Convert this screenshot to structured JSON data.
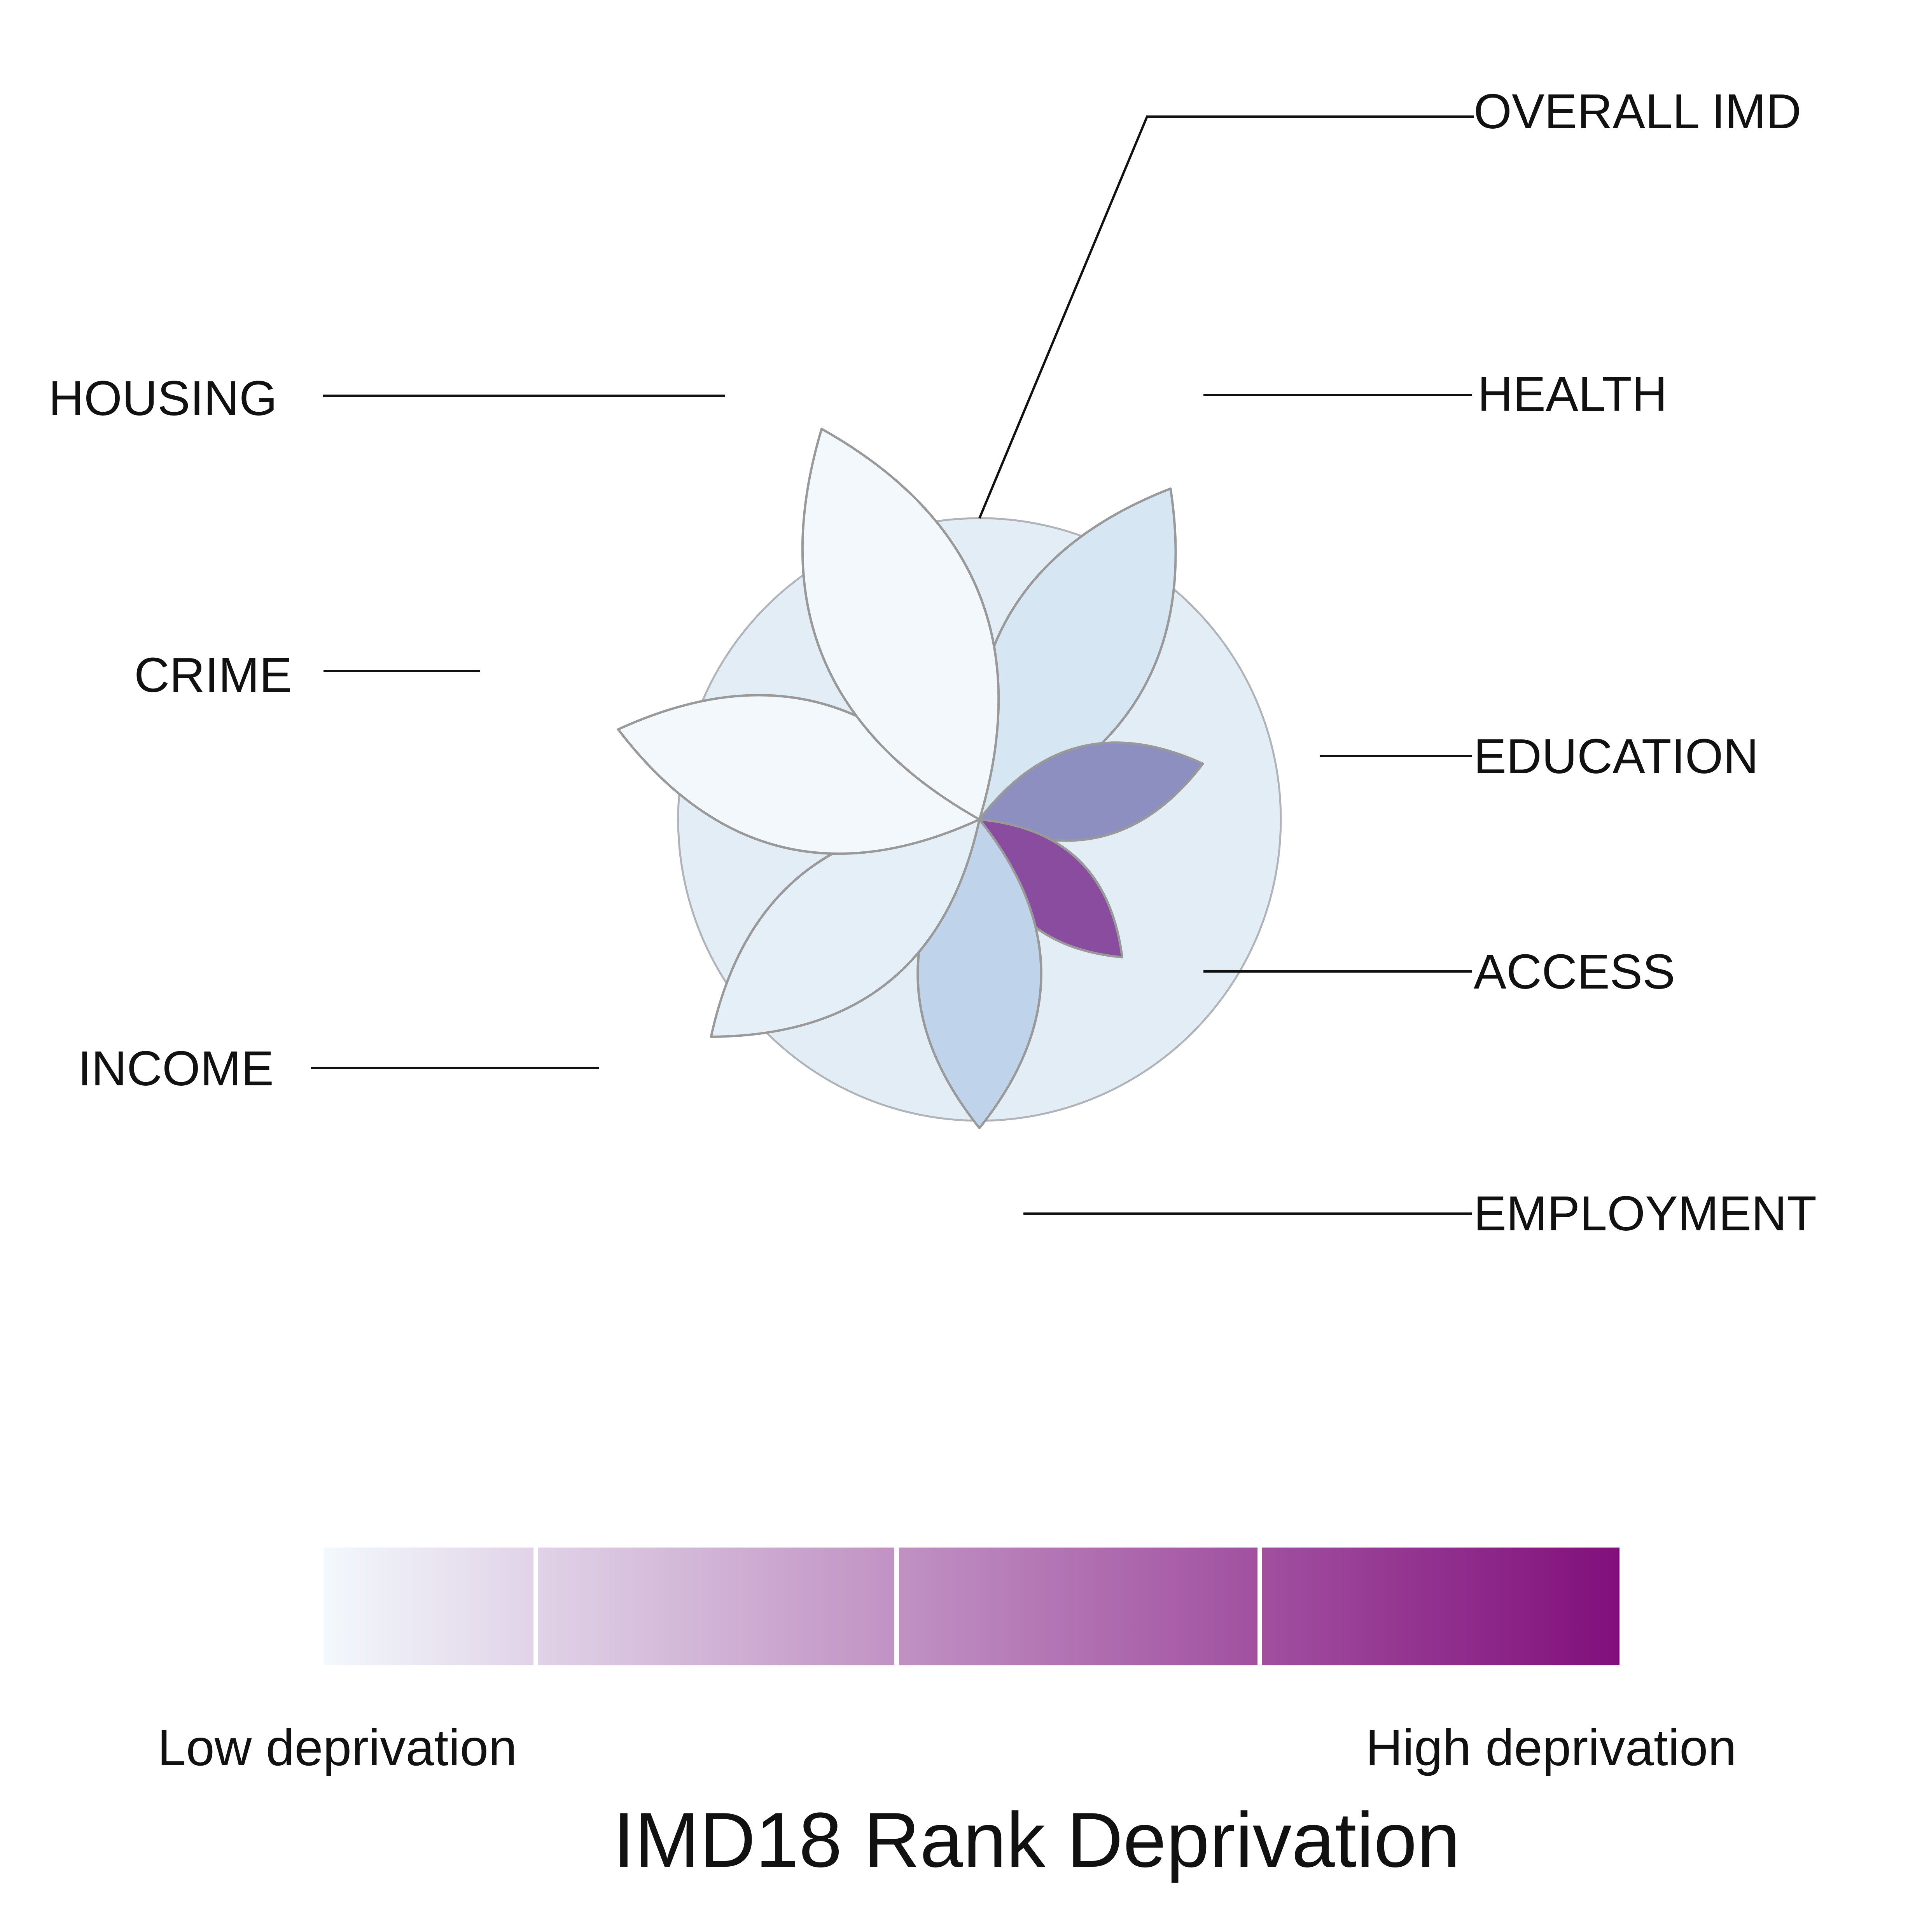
{
  "chart_data": {
    "type": "radial-petal",
    "title": "",
    "xlabel": "",
    "ylabel": "",
    "series_name": "",
    "categories": [
      "OVERALL IMD",
      "HEALTH",
      "EDUCATION",
      "ACCESS",
      "EMPLOYMENT",
      "INCOME",
      "CRIME",
      "HOUSING"
    ],
    "overall": {
      "label": "OVERALL IMD",
      "value": 0.24,
      "shape": "circle",
      "color": "#e2edf5"
    },
    "domains": [
      {
        "label": "HEALTH",
        "value": 0.26,
        "petal_length": 1.56,
        "angle_deg": 30,
        "color": "#d6e6f2"
      },
      {
        "label": "EDUCATION",
        "value": 0.62,
        "petal_length": 0.94,
        "angle_deg": 76,
        "color": "#8c8fc0"
      },
      {
        "label": "ACCESS",
        "value": 0.92,
        "petal_length": 0.81,
        "angle_deg": 134,
        "color": "#8a4c9e"
      },
      {
        "label": "EMPLOYMENT",
        "value": 0.39,
        "petal_length": 1.26,
        "angle_deg": 180,
        "color": "#bfd4ea"
      },
      {
        "label": "INCOME",
        "value": 0.18,
        "petal_length": 1.41,
        "angle_deg": 231,
        "color": "#e4eff7"
      },
      {
        "label": "CRIME",
        "value": 0.03,
        "petal_length": 1.52,
        "angle_deg": 284,
        "color": "#f3f8fc"
      },
      {
        "label": "HOUSING",
        "value": 0.04,
        "petal_length": 1.72,
        "angle_deg": 338,
        "color": "#f2f8fc"
      }
    ],
    "legend": {
      "low_label": "Low deprivation",
      "high_label": "High deprivation",
      "title": "IMD18 Rank Deprivation",
      "colors": [
        "#f3f9fc",
        "#b3cde3",
        "#8c96c6",
        "#8856a7",
        "#810f7c"
      ]
    },
    "colors": {
      "petal_stroke": "#999999",
      "circle_stroke": "#b0b4b8",
      "leader_line": "#111111"
    }
  }
}
